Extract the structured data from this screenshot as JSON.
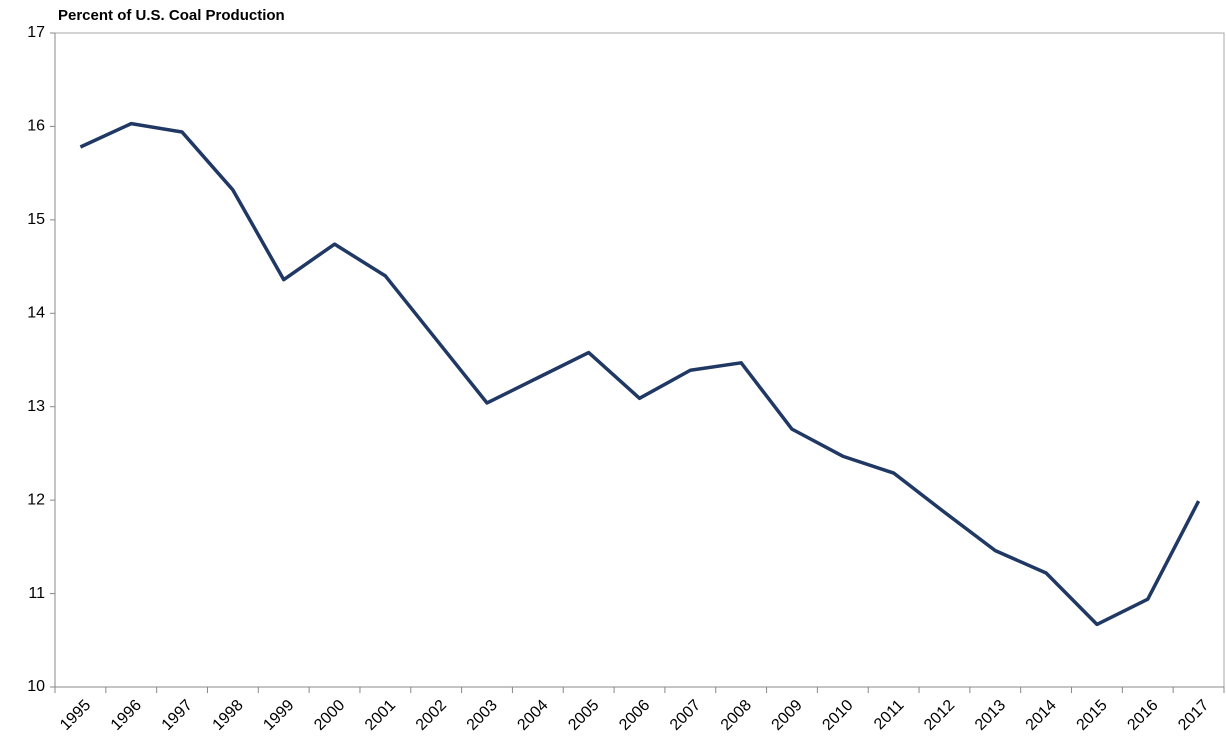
{
  "chart_data": {
    "type": "line",
    "title": "Percent of U.S. Coal Production",
    "categories": [
      "1995",
      "1996",
      "1997",
      "1998",
      "1999",
      "2000",
      "2001",
      "2002",
      "2003",
      "2004",
      "2005",
      "2006",
      "2007",
      "2008",
      "2009",
      "2010",
      "2011",
      "2012",
      "2013",
      "2014",
      "2015",
      "2016",
      "2017"
    ],
    "series": [
      {
        "name": "Percent of U.S. Coal Production",
        "color": "#203864",
        "values": [
          15.78,
          16.03,
          15.94,
          15.32,
          14.36,
          14.74,
          14.4,
          13.72,
          13.04,
          13.31,
          13.58,
          13.09,
          13.39,
          13.47,
          12.76,
          12.47,
          12.29,
          11.87,
          11.46,
          11.22,
          10.67,
          10.94,
          11.99
        ]
      }
    ],
    "ylim": [
      10,
      17
    ],
    "yticks": [
      10,
      11,
      12,
      13,
      14,
      15,
      16,
      17
    ]
  }
}
